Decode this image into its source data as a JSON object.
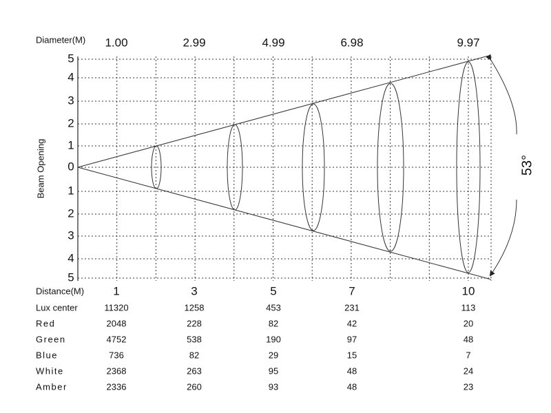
{
  "diameter_label": "Diameter(M)",
  "diameters": [
    "1.00",
    "2.99",
    "4.99",
    "6.98",
    "9.97"
  ],
  "beam_label": "Beam Opening",
  "beam_ticks": [
    "5",
    "4",
    "3",
    "2",
    "1",
    "0",
    "1",
    "2",
    "3",
    "4",
    "5"
  ],
  "angle": "53°",
  "distance_label": "Distance(M)",
  "distances": [
    "1",
    "3",
    "5",
    "7",
    "10"
  ],
  "rows": [
    {
      "label": "Lux center",
      "values": [
        11320,
        1258,
        453,
        231,
        113
      ]
    },
    {
      "label": "Red",
      "values": [
        2048,
        228,
        82,
        42,
        20
      ]
    },
    {
      "label": "Green",
      "values": [
        4752,
        538,
        190,
        97,
        48
      ]
    },
    {
      "label": "Blue",
      "values": [
        736,
        82,
        29,
        15,
        7
      ]
    },
    {
      "label": "White",
      "values": [
        2368,
        263,
        95,
        48,
        24
      ]
    },
    {
      "label": "Amber",
      "values": [
        2336,
        260,
        93,
        48,
        23
      ]
    }
  ]
}
